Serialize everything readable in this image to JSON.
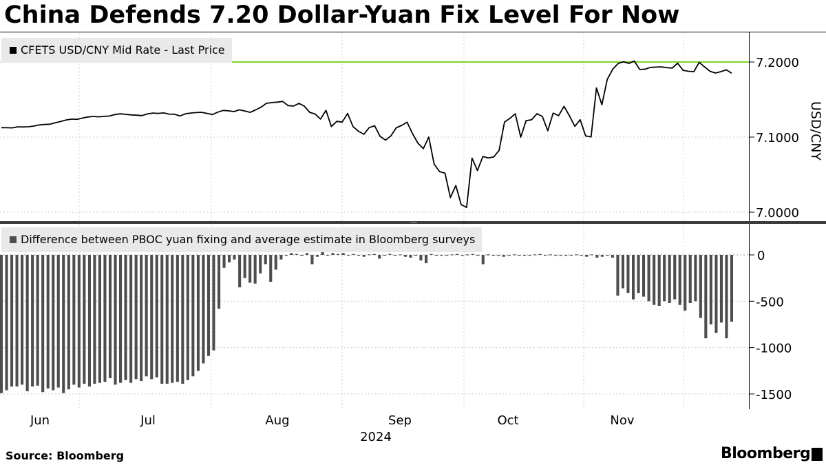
{
  "title": "China Defends 7.20 Dollar-Yuan Fix Level For Now",
  "source": "Source:  Bloomberg",
  "brand": "Bloomberg",
  "colors": {
    "line": "#000000",
    "bars": "#4d4d4d",
    "reference_line": "#7ed321",
    "legend_bg": "#e9e9e9"
  },
  "chart_data": [
    {
      "type": "line",
      "legend": "CFETS USD/CNY Mid Rate - Last Price",
      "ylabel": "USD/CNY",
      "ylim": [
        7.0,
        7.2
      ],
      "yticks": [
        "7.2000",
        "7.1000",
        "7.0000"
      ],
      "reference_line": 7.2,
      "x_axis": {
        "months": [
          "Jun",
          "Jul",
          "Aug",
          "Sep",
          "Oct",
          "Nov"
        ],
        "year": "2024"
      },
      "values": [
        7.1126,
        7.1125,
        7.1123,
        7.1137,
        7.1135,
        7.1138,
        7.1147,
        7.1162,
        7.1168,
        7.1172,
        7.1192,
        7.1208,
        7.1228,
        7.1239,
        7.1237,
        7.1253,
        7.1268,
        7.1275,
        7.127,
        7.1276,
        7.1281,
        7.13,
        7.131,
        7.1303,
        7.1295,
        7.1292,
        7.1286,
        7.1308,
        7.132,
        7.1316,
        7.1322,
        7.1306,
        7.1305,
        7.1281,
        7.131,
        7.132,
        7.1327,
        7.133,
        7.1316,
        7.13,
        7.1332,
        7.1355,
        7.135,
        7.1339,
        7.1363,
        7.1348,
        7.1329,
        7.1362,
        7.1398,
        7.145,
        7.146,
        7.1465,
        7.1475,
        7.1419,
        7.1414,
        7.1449,
        7.1412,
        7.1329,
        7.1307,
        7.124,
        7.1357,
        7.114,
        7.1209,
        7.12,
        7.1315,
        7.1139,
        7.1079,
        7.1037,
        7.1127,
        7.115,
        7.101,
        7.096,
        7.1016,
        7.1124,
        7.1156,
        7.1198,
        7.1046,
        7.0918,
        7.0847,
        7.1,
        7.064,
        7.054,
        7.0519,
        7.0195,
        7.0355,
        7.01,
        7.0063,
        7.072,
        7.0554,
        7.0741,
        7.0722,
        7.0735,
        7.0823,
        7.1199,
        7.125,
        7.131,
        7.0999,
        7.1218,
        7.123,
        7.1311,
        7.1275,
        7.1084,
        7.1319,
        7.1285,
        7.141,
        7.1284,
        7.1143,
        7.1231,
        7.1016,
        7.1002,
        7.1655,
        7.143,
        7.1768,
        7.1904,
        7.198,
        7.2004,
        7.1982,
        7.2013,
        7.19,
        7.1905,
        7.1928,
        7.1932,
        7.1935,
        7.1925,
        7.1918,
        7.1984,
        7.189,
        7.1876,
        7.1872,
        7.1995,
        7.1934,
        7.1876,
        7.1853,
        7.1872,
        7.1896,
        7.185
      ]
    },
    {
      "type": "bar",
      "legend": "Difference between PBOC yuan fixing and average estimate in Bloomberg surveys",
      "ylim": [
        -1650,
        250
      ],
      "yticks": [
        "0",
        "-500",
        "-1000",
        "-1500"
      ],
      "values": [
        -1490,
        -1460,
        -1420,
        -1420,
        -1400,
        -1470,
        -1420,
        -1410,
        -1480,
        -1440,
        -1460,
        -1430,
        -1490,
        -1450,
        -1400,
        -1430,
        -1390,
        -1420,
        -1390,
        -1380,
        -1370,
        -1330,
        -1400,
        -1380,
        -1350,
        -1380,
        -1340,
        -1360,
        -1310,
        -1340,
        -1320,
        -1390,
        -1390,
        -1380,
        -1370,
        -1390,
        -1350,
        -1310,
        -1250,
        -1170,
        -1090,
        -1030,
        -580,
        -140,
        -80,
        -50,
        -350,
        -250,
        -300,
        -310,
        -200,
        -100,
        -290,
        -160,
        -50,
        -10,
        20,
        10,
        -10,
        20,
        -100,
        -20,
        40,
        0,
        20,
        10,
        20,
        0,
        10,
        0,
        -20,
        5,
        10,
        -40,
        0,
        10,
        0,
        5,
        -20,
        -30,
        0,
        -60,
        -90,
        10,
        0,
        -5,
        0,
        5,
        10,
        0,
        5,
        10,
        -10,
        -100,
        5,
        0,
        -10,
        -20,
        -10,
        5,
        0,
        -5,
        -10,
        5,
        10,
        0,
        5,
        -5,
        0,
        -10,
        0,
        5,
        0,
        -20,
        5,
        -30,
        -20,
        0,
        -30,
        -440,
        -360,
        -410,
        -480,
        -410,
        -450,
        -500,
        -540,
        -550,
        -500,
        -520,
        -480,
        -540,
        -600,
        -520,
        -500,
        -680,
        -900,
        -750,
        -840,
        -730,
        -900,
        -720
      ]
    }
  ]
}
